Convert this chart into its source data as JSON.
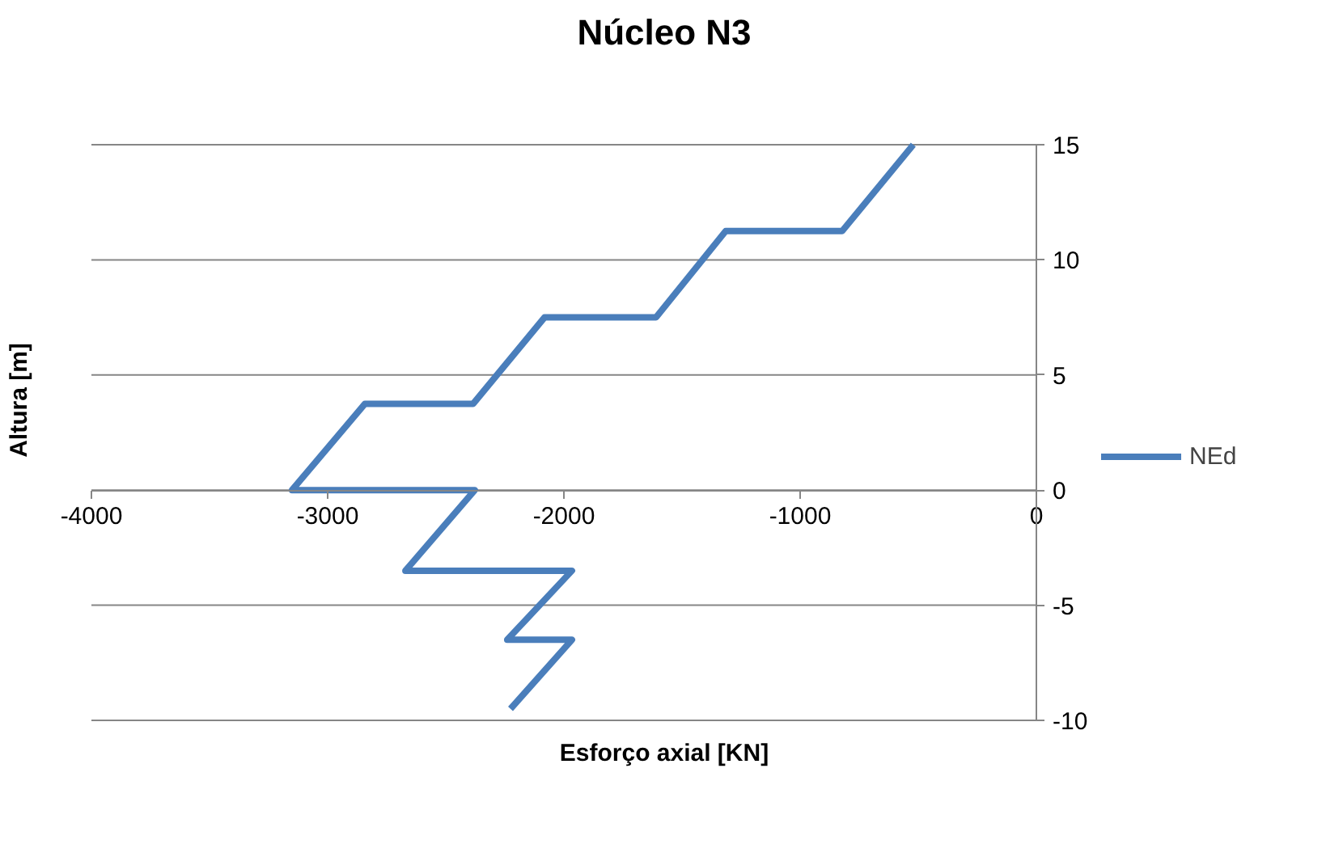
{
  "chart_data": {
    "type": "line",
    "title": "Núcleo N3",
    "xlabel": "Esforço axial [KN]",
    "ylabel": "Altura [m]",
    "series": [
      {
        "name": "NEd",
        "color": "#4a7ebb",
        "x": [
          -2226,
          -1966,
          -2240,
          -1966,
          -2671,
          -2377,
          -3151,
          -2842,
          -2384,
          -2082,
          -1610,
          -1315,
          -822,
          -521
        ],
        "values": [
          -9.5,
          -6.5,
          -6.5,
          -3.5,
          -3.5,
          0,
          0,
          3.75,
          3.75,
          7.5,
          7.5,
          11.25,
          11.25,
          15
        ]
      }
    ],
    "xlim": [
      -4000,
      0
    ],
    "xticks": [
      -4000,
      -3000,
      -2000,
      -1000,
      0
    ],
    "ylim": [
      -10,
      15
    ],
    "yticks": [
      -10,
      -5,
      0,
      5,
      10,
      15
    ],
    "grid": "y",
    "legend": "right",
    "marker": "none",
    "line_style": "solid"
  }
}
